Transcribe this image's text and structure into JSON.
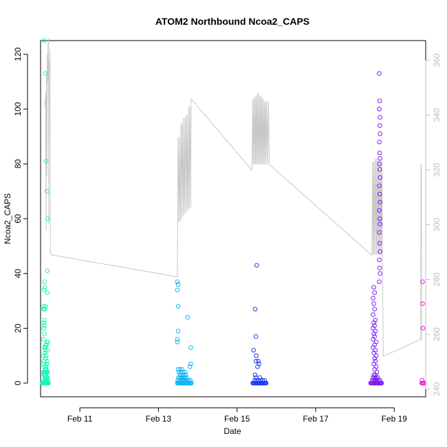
{
  "chart_data": {
    "type": "scatter",
    "title": "ATOM2 Northbound Ncoa2_CAPS",
    "xlabel": "Date",
    "ylabel": "Ncoa2_CAPS",
    "x_unit": "date (February)",
    "xlim": [
      10.0,
      19.8
    ],
    "ylim": [
      -5.0,
      125.0
    ],
    "x_ticks": [
      11,
      13,
      15,
      17,
      19
    ],
    "x_tick_labels": [
      "Feb 11",
      "Feb 13",
      "Feb 15",
      "Feb 17",
      "Feb 19"
    ],
    "y_ticks": [
      0,
      20,
      40,
      60,
      80,
      100,
      120
    ],
    "y_tick_labels": [
      "0",
      "20",
      "40",
      "60",
      "80",
      "100",
      "120"
    ],
    "secondary_axis": {
      "side": "right",
      "color": "#bdbdbd",
      "ylim": [
        237.2,
        367.2
      ],
      "ticks": [
        240,
        260,
        280,
        300,
        320,
        340,
        360
      ],
      "tick_labels": [
        "240",
        "260",
        "280",
        "300",
        "320",
        "340",
        "360"
      ]
    },
    "grid": false,
    "legend": "none",
    "series": [
      {
        "color": "#18f6b4",
        "x_day": [
          10.04,
          10.05,
          10.06,
          10.07,
          10.08,
          10.09,
          10.1,
          10.11,
          10.12,
          10.13,
          10.14,
          10.15,
          10.16,
          10.17,
          10.18,
          10.19,
          10.2,
          10.1,
          10.12,
          10.14,
          10.16,
          10.18,
          10.11,
          10.13,
          10.15,
          10.17,
          10.09,
          10.11,
          10.13,
          10.08,
          10.1,
          10.12,
          10.14,
          10.16,
          10.18,
          10.12,
          10.14,
          10.1,
          10.14,
          10.09,
          10.16,
          10.08,
          10.17,
          10.13,
          10.08,
          10.14,
          10.11,
          10.12,
          10.18,
          10.1,
          10.11,
          10.12,
          10.13,
          10.16,
          10.17,
          10.18,
          10.07,
          10.1,
          10.08,
          10.1,
          10.09,
          10.1,
          10.08,
          10.11,
          10.08,
          10.13,
          10.09,
          10.11,
          10.1,
          10.17,
          10.18,
          10.16,
          10.14,
          10.09,
          10.12,
          10.17
        ],
        "values": [
          0,
          0,
          0,
          0,
          0,
          0,
          0,
          0,
          0,
          0,
          0,
          0,
          0,
          0,
          0,
          0,
          0,
          1,
          1,
          1,
          1,
          1,
          2,
          2,
          2,
          2,
          3,
          3,
          3,
          4,
          4,
          4,
          4,
          4,
          4,
          5,
          5,
          6,
          6,
          7,
          7,
          8,
          8,
          9,
          10,
          10,
          11,
          12,
          12,
          13,
          13,
          13,
          14,
          14,
          15,
          15,
          16,
          18,
          20,
          21,
          22,
          23,
          27,
          27,
          28,
          28,
          34,
          35,
          37,
          41,
          60,
          70,
          81,
          125,
          113,
          33
        ],
        "marker": "open circle"
      },
      {
        "color": "#12b4ee",
        "x_day": [
          13.48,
          13.5,
          13.52,
          13.54,
          13.56,
          13.58,
          13.6,
          13.62,
          13.64,
          13.66,
          13.68,
          13.7,
          13.72,
          13.74,
          13.76,
          13.78,
          13.8,
          13.82,
          13.84,
          13.49,
          13.53,
          13.57,
          13.61,
          13.65,
          13.69,
          13.73,
          13.77,
          13.81,
          13.51,
          13.55,
          13.59,
          13.63,
          13.67,
          13.71,
          13.55,
          13.6,
          13.65,
          13.7,
          13.52,
          13.57,
          13.62,
          13.67,
          13.5,
          13.55,
          13.6,
          13.8,
          13.82,
          13.48,
          13.48,
          13.5,
          13.5,
          13.48,
          13.74,
          13.82,
          13.5,
          13.48
        ],
        "values": [
          0,
          0,
          0,
          0,
          0,
          0,
          0,
          0,
          0,
          0,
          0,
          0,
          0,
          0,
          0,
          0,
          0,
          0,
          0,
          1,
          1,
          1,
          1,
          1,
          1,
          1,
          1,
          1,
          2,
          2,
          2,
          2,
          2,
          2,
          3,
          3,
          3,
          3,
          4,
          4,
          4,
          4,
          5,
          5,
          5,
          6,
          7,
          15,
          16,
          19,
          28,
          34,
          24,
          13,
          36,
          37
        ],
        "marker": "open circle"
      },
      {
        "color": "#1d3bf2",
        "x_day": [
          15.4,
          15.42,
          15.44,
          15.46,
          15.48,
          15.5,
          15.52,
          15.54,
          15.56,
          15.58,
          15.6,
          15.62,
          15.64,
          15.66,
          15.68,
          15.7,
          15.72,
          15.74,
          15.45,
          15.5,
          15.55,
          15.6,
          15.65,
          15.7,
          15.48,
          15.58,
          15.46,
          15.52,
          15.56,
          15.48,
          15.54,
          15.49,
          15.42,
          15.48,
          15.46,
          15.5
        ],
        "values": [
          0,
          0,
          0,
          0,
          0,
          0,
          0,
          0,
          0,
          0,
          0,
          0,
          0,
          0,
          0,
          0,
          0,
          0,
          1,
          1,
          1,
          1,
          1,
          1,
          2,
          2,
          3,
          6,
          7,
          8,
          8,
          10,
          12,
          17,
          27,
          43
        ],
        "marker": "open circle"
      },
      {
        "color": "#7a1bf2",
        "x_day": [
          18.4,
          18.42,
          18.44,
          18.46,
          18.48,
          18.5,
          18.52,
          18.54,
          18.56,
          18.58,
          18.6,
          18.62,
          18.64,
          18.66,
          18.68,
          18.44,
          18.48,
          18.52,
          18.56,
          18.6,
          18.64,
          18.46,
          18.5,
          18.54,
          18.58,
          18.48,
          18.52,
          18.56,
          18.5,
          18.54,
          18.48,
          18.52,
          18.5,
          18.54,
          18.48,
          18.52,
          18.46,
          18.5,
          18.54,
          18.46,
          18.5,
          18.48,
          18.52,
          18.46,
          18.5,
          18.48,
          18.52,
          18.46,
          18.5,
          18.48,
          18.46,
          18.5,
          18.48,
          18.62,
          18.64,
          18.63,
          18.62,
          18.64,
          18.63,
          18.62,
          18.64,
          18.63,
          18.62,
          18.64,
          18.63,
          18.62,
          18.64,
          18.63,
          18.62,
          18.64,
          18.63,
          18.62,
          18.64,
          18.63,
          18.64,
          18.62,
          18.63,
          18.62
        ],
        "values": [
          0,
          0,
          0,
          0,
          0,
          0,
          0,
          0,
          0,
          0,
          0,
          0,
          0,
          0,
          0,
          1,
          1,
          1,
          1,
          1,
          1,
          2,
          2,
          2,
          2,
          3,
          3,
          4,
          5,
          6,
          7,
          8,
          9,
          10,
          11,
          12,
          13,
          14,
          15,
          16,
          17,
          18,
          19,
          20,
          21,
          22,
          23,
          25,
          27,
          29,
          31,
          33,
          35,
          37,
          40,
          42,
          45,
          48,
          51,
          55,
          58,
          60,
          63,
          66,
          69,
          72,
          75,
          78,
          80,
          82,
          84,
          88,
          91,
          94,
          97,
          100,
          103,
          113
        ],
        "marker": "open circle"
      },
      {
        "color": "#ee1be6",
        "x_day": [
          19.7,
          19.72,
          19.74,
          19.76,
          19.71,
          19.73,
          19.72,
          19.72
        ],
        "values": [
          0,
          0,
          0,
          0,
          1,
          20,
          29,
          37
        ],
        "marker": "open circle"
      }
    ],
    "secondary_series": {
      "color": "#c8c8c8",
      "type": "line",
      "x_day": [
        10.1,
        10.11,
        10.12,
        10.13,
        10.14,
        10.15,
        10.16,
        10.17,
        10.18,
        10.19,
        10.2,
        10.21,
        10.22,
        10.23,
        10.24,
        10.25,
        10.26,
        10.27,
        10.28,
        13.47,
        13.48,
        13.5,
        13.52,
        13.53,
        13.55,
        13.57,
        13.58,
        13.6,
        13.62,
        13.63,
        13.65,
        13.67,
        13.68,
        13.7,
        13.72,
        13.73,
        13.75,
        13.77,
        13.78,
        13.8,
        13.82,
        13.83,
        15.37,
        15.38,
        15.4,
        15.41,
        15.43,
        15.44,
        15.46,
        15.47,
        15.49,
        15.5,
        15.52,
        15.53,
        15.55,
        15.56,
        15.58,
        15.59,
        15.61,
        15.62,
        15.64,
        15.65,
        15.67,
        15.68,
        15.7,
        15.71,
        15.73,
        15.74,
        15.76,
        15.78,
        15.8,
        15.82,
        18.42,
        18.43,
        18.45,
        18.46,
        18.48,
        18.49,
        18.51,
        18.52,
        18.54,
        18.55,
        18.57,
        18.58,
        18.6,
        18.61,
        18.63,
        18.64,
        18.66,
        18.67,
        18.69,
        18.7,
        18.72,
        19.65,
        19.66,
        19.67,
        19.68,
        19.69,
        19.7
      ],
      "values": [
        343,
        345,
        345,
        348,
        298,
        356,
        318,
        362,
        352,
        365,
        368,
        300,
        360,
        358,
        364,
        290,
        290,
        289,
        289,
        281,
        281,
        332,
        301,
        332,
        301,
        337,
        302,
        337,
        303,
        339,
        304,
        339,
        304,
        340,
        305,
        340,
        305,
        343,
        306,
        343,
        306,
        346,
        320,
        320,
        346,
        322,
        346,
        322,
        347,
        322,
        347,
        322,
        348,
        322,
        348,
        322,
        347,
        322,
        347,
        322,
        346,
        322,
        346,
        322,
        345,
        322,
        345,
        322,
        345,
        322,
        345,
        322,
        289,
        289,
        323,
        289,
        323,
        289,
        324,
        289,
        324,
        289,
        324,
        289,
        324,
        289,
        323,
        289,
        324,
        289,
        323,
        289,
        252,
        258,
        258,
        258,
        322,
        322,
        258
      ]
    }
  }
}
